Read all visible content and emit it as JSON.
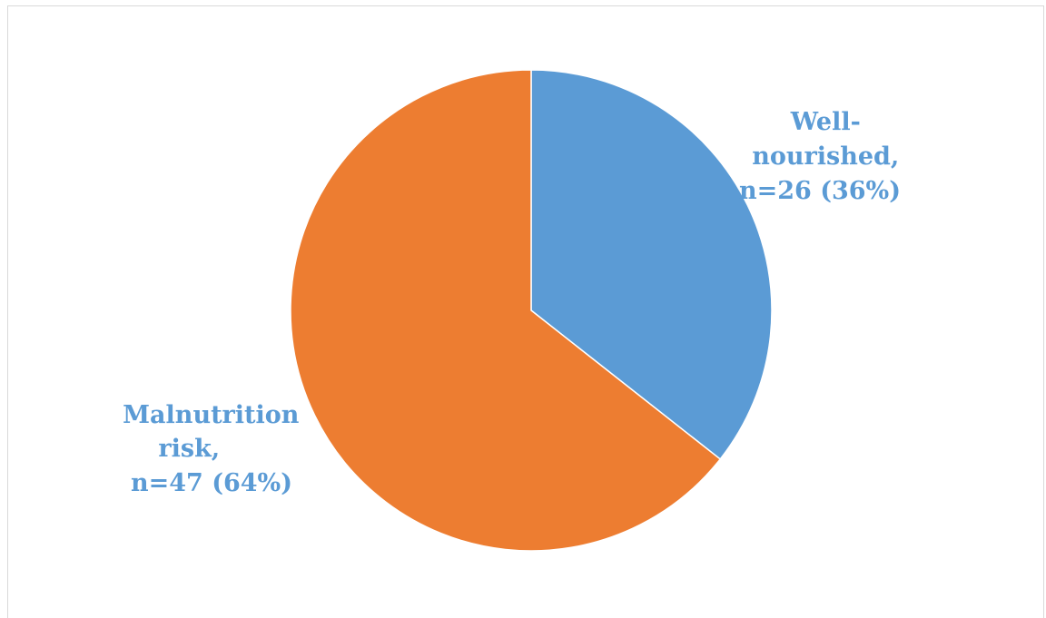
{
  "chart_data": {
    "type": "pie",
    "title": "",
    "start_angle_deg": 0,
    "direction": "clockwise",
    "slices": [
      {
        "name": "Well-nourished",
        "value": 26,
        "percent": 36,
        "color": "#5b9bd5",
        "label_lines": [
          "Well-",
          "nourished,",
          "n=26 (36%)"
        ]
      },
      {
        "name": "Malnutrition risk",
        "value": 47,
        "percent": 64,
        "color": "#ed7d31",
        "label_lines": [
          "Malnutrition",
          "risk,",
          "n=47 (64%)"
        ]
      }
    ],
    "label_color": "#5b9bd5",
    "legend": "none"
  }
}
